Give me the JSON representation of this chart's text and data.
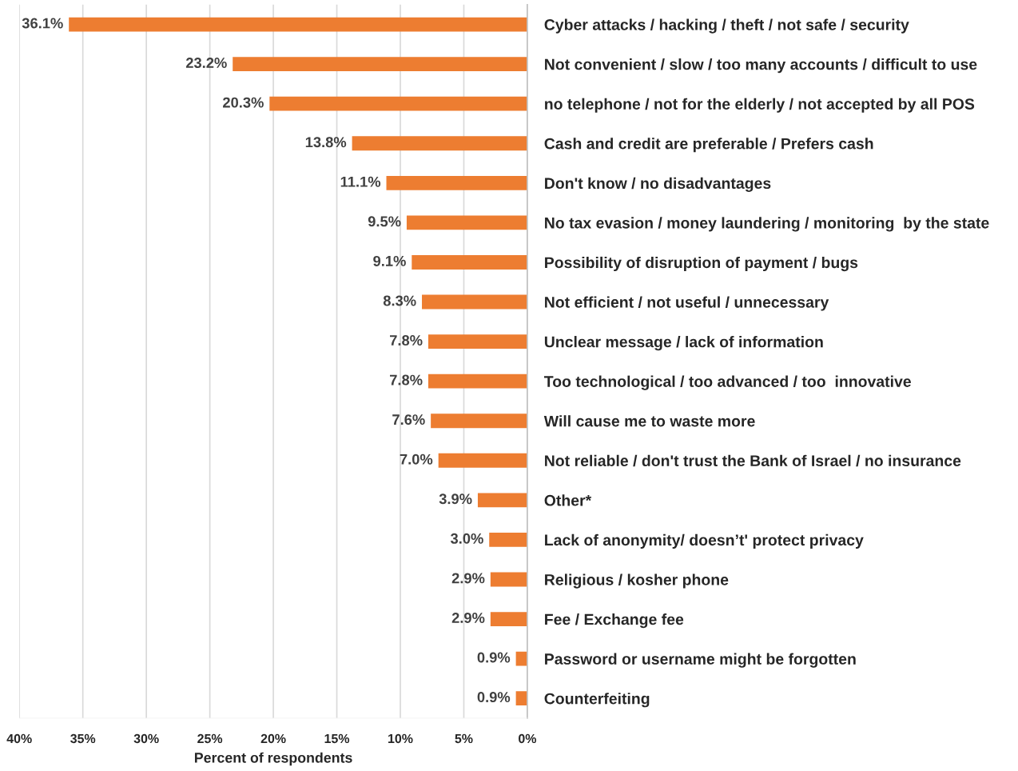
{
  "chart_data": {
    "type": "bar",
    "orientation": "horizontal",
    "xlabel": "Percent of respondents",
    "categories": [
      "Cyber attacks / hacking / theft / not safe / security",
      "Not convenient / slow / too many accounts / difficult to use",
      "no telephone / not for the elderly / not accepted by all POS",
      "Cash and credit are preferable / Prefers cash",
      "Don't know / no disadvantages",
      "No tax evasion / money laundering / monitoring  by the state",
      "Possibility of disruption of payment / bugs",
      "Not efficient / not useful / unnecessary",
      "Unclear message / lack of information",
      "Too technological / too advanced / too  innovative",
      "Will cause me to waste more",
      "Not reliable / don't trust the Bank of Israel / no insurance",
      "Other*",
      "Lack of anonymity/ doesn’t' protect privacy",
      "Religious / kosher phone",
      "Fee / Exchange fee",
      "Password or username might be forgotten",
      "Counterfeiting"
    ],
    "values": [
      36.1,
      23.2,
      20.3,
      13.8,
      11.1,
      9.5,
      9.1,
      8.3,
      7.8,
      7.8,
      7.6,
      7.0,
      3.9,
      3.0,
      2.9,
      2.9,
      0.9,
      0.9
    ],
    "value_labels": [
      "36.1%",
      "23.2%",
      "20.3%",
      "13.8%",
      "11.1%",
      "9.5%",
      "9.1%",
      "8.3%",
      "7.8%",
      "7.8%",
      "7.6%",
      "7.0%",
      "3.9%",
      "3.0%",
      "2.9%",
      "2.9%",
      "0.9%",
      "0.9%"
    ],
    "color": "#ed7d31",
    "xlim": [
      40,
      0
    ],
    "xticks": [
      {
        "value": 40,
        "label": "40%"
      },
      {
        "value": 35,
        "label": "35%"
      },
      {
        "value": 30,
        "label": "30%"
      },
      {
        "value": 25,
        "label": "25%"
      },
      {
        "value": 20,
        "label": "20%"
      },
      {
        "value": 15,
        "label": "15%"
      },
      {
        "value": 10,
        "label": "10%"
      },
      {
        "value": 5,
        "label": "5%"
      },
      {
        "value": 0,
        "label": "0%"
      }
    ],
    "grid": "x",
    "legend": false
  }
}
